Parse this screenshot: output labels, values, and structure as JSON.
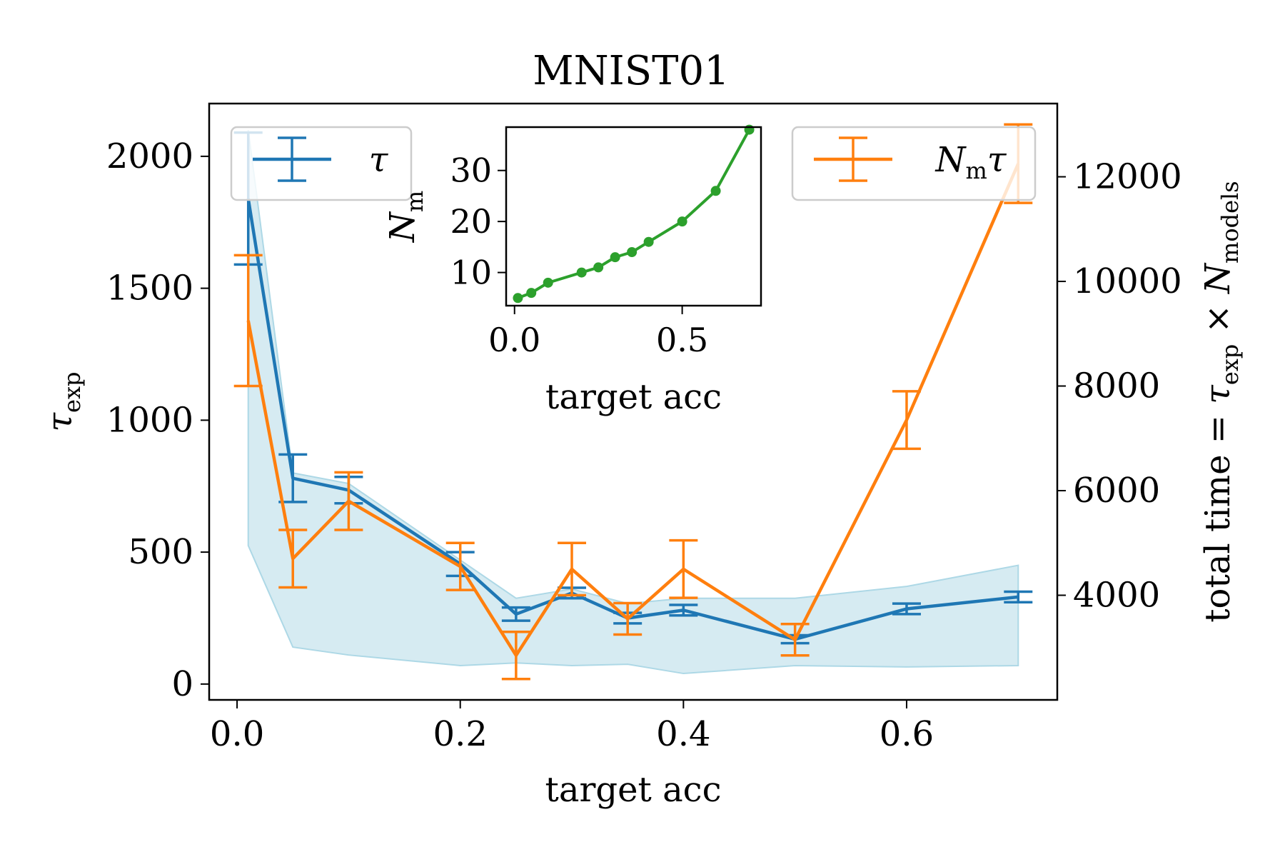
{
  "chart_data": {
    "type": "line",
    "title": "MNIST01",
    "xlabel": "target acc",
    "ylabel": {
      "base": "τ",
      "sub": "exp"
    },
    "y2label": {
      "prefix": "total time = ",
      "t1": "τ",
      "t1sub": "exp",
      "times": " × ",
      "t2": "N",
      "t2sub": "models"
    },
    "xlim": [
      -0.025,
      0.735
    ],
    "ylim": [
      -60,
      2200
    ],
    "y2lim": [
      2000,
      13400
    ],
    "xticks": [
      0.0,
      0.2,
      0.4,
      0.6
    ],
    "xtick_labels": [
      "0.0",
      "0.2",
      "0.4",
      "0.6"
    ],
    "yticks": [
      0,
      500,
      1000,
      1500,
      2000
    ],
    "ytick_labels": [
      "0",
      "500",
      "1000",
      "1500",
      "2000"
    ],
    "y2ticks": [
      4000,
      6000,
      8000,
      10000,
      12000
    ],
    "y2tick_labels": [
      "4000",
      "6000",
      "8000",
      "10000",
      "12000"
    ],
    "series": [
      {
        "name": "τ",
        "axis": "left",
        "color": "#1f77b4",
        "x": [
          0.01,
          0.05,
          0.1,
          0.2,
          0.25,
          0.3,
          0.35,
          0.4,
          0.5,
          0.6,
          0.7
        ],
        "y": [
          1840,
          780,
          735,
          455,
          265,
          345,
          250,
          280,
          170,
          285,
          330
        ],
        "yerr": [
          250,
          90,
          50,
          45,
          25,
          20,
          20,
          20,
          15,
          20,
          20
        ],
        "band_upper": [
          2100,
          800,
          760,
          470,
          325,
          360,
          305,
          325,
          325,
          370,
          450
        ],
        "band_lower": [
          525,
          140,
          110,
          70,
          80,
          70,
          75,
          40,
          70,
          65,
          70
        ],
        "band_color": "#add8e6"
      },
      {
        "name": "Nmτ",
        "axis": "right",
        "color": "#ff7f0e",
        "x": [
          0.01,
          0.05,
          0.1,
          0.2,
          0.25,
          0.3,
          0.35,
          0.4,
          0.5,
          0.6,
          0.7
        ],
        "y": [
          9250,
          4700,
          5800,
          4550,
          2850,
          4500,
          3550,
          4500,
          3150,
          7350,
          12250
        ],
        "yerr": [
          1250,
          550,
          550,
          450,
          450,
          500,
          300,
          550,
          300,
          550,
          750
        ]
      }
    ],
    "legend_left": {
      "label": "τ",
      "placement": "upper left"
    },
    "legend_right": {
      "label_base": "N",
      "label_sub": "m",
      "label_tail": "τ",
      "placement": "upper right"
    },
    "inset": {
      "type": "line",
      "color": "#2ca02c",
      "xlabel": "target acc",
      "ylabel": {
        "base": "N",
        "sub": "m"
      },
      "xlim": [
        -0.025,
        0.735
      ],
      "ylim": [
        3.5,
        38.5
      ],
      "xticks": [
        0.0,
        0.5
      ],
      "xtick_labels": [
        "0.0",
        "0.5"
      ],
      "yticks": [
        10,
        20,
        30
      ],
      "ytick_labels": [
        "10",
        "20",
        "30"
      ],
      "x": [
        0.01,
        0.05,
        0.1,
        0.2,
        0.25,
        0.3,
        0.35,
        0.4,
        0.5,
        0.6,
        0.7
      ],
      "y": [
        5,
        6,
        8,
        10,
        11,
        13,
        14,
        16,
        20,
        26,
        38
      ]
    }
  }
}
